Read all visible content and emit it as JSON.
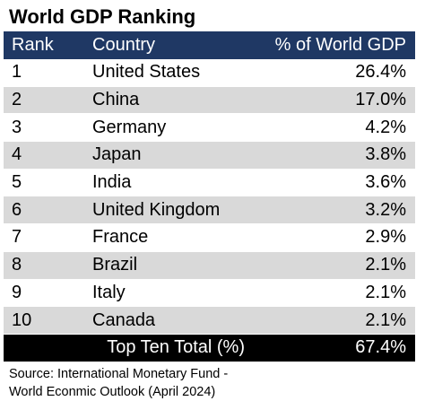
{
  "chart_data": {
    "type": "table",
    "title": "World GDP Ranking",
    "columns": [
      "Rank",
      "Country",
      "% of World GDP"
    ],
    "rows": [
      {
        "rank": "1",
        "country": "United States",
        "share": "26.4%"
      },
      {
        "rank": "2",
        "country": "China",
        "share": "17.0%"
      },
      {
        "rank": "3",
        "country": "Germany",
        "share": "4.2%"
      },
      {
        "rank": "4",
        "country": "Japan",
        "share": "3.8%"
      },
      {
        "rank": "5",
        "country": "India",
        "share": "3.6%"
      },
      {
        "rank": "6",
        "country": "United Kingdom",
        "share": "3.2%"
      },
      {
        "rank": "7",
        "country": "France",
        "share": "2.9%"
      },
      {
        "rank": "8",
        "country": "Brazil",
        "share": "2.1%"
      },
      {
        "rank": "9",
        "country": "Italy",
        "share": "2.1%"
      },
      {
        "rank": "10",
        "country": "Canada",
        "share": "2.1%"
      }
    ],
    "total": {
      "label": "Top Ten Total (%)",
      "value": "67.4%"
    },
    "source": [
      "Source: International Monetary Fund -",
      "World Econmic Outlook (April 2024)"
    ],
    "colors": {
      "header_bg": "#1f3864",
      "header_text": "#ffffff",
      "row_alt_bg": "#d9d9d9",
      "total_bg": "#000000",
      "total_text": "#ffffff"
    }
  }
}
